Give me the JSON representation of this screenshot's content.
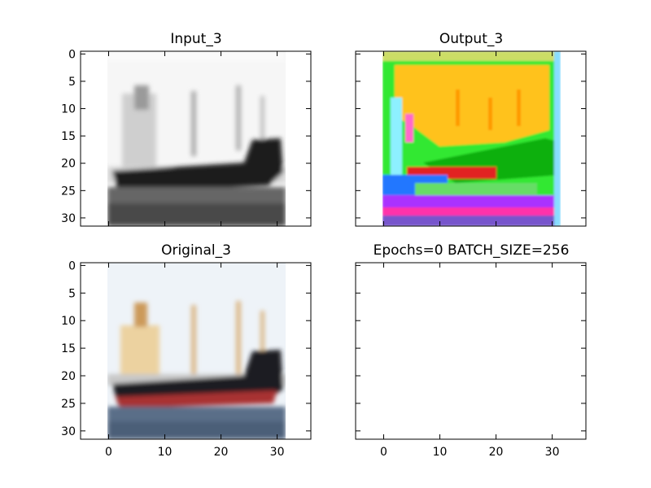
{
  "chart_data": [
    {
      "type": "image",
      "panel": "top-left",
      "title": "Input_3",
      "content": "grayscale blurred cargo ship",
      "image_extent": {
        "x": [
          -0.5,
          31.5
        ],
        "y": [
          -0.5,
          31.5
        ]
      },
      "xlim": [
        -5,
        36
      ],
      "ylim": [
        31.5,
        -0.5
      ],
      "yticks": [
        0,
        5,
        10,
        15,
        20,
        25,
        30
      ],
      "xticks": [],
      "grid": false
    },
    {
      "type": "image",
      "panel": "top-right",
      "title": "Output_3",
      "content": "false-color reconstruction of cargo ship",
      "image_extent": {
        "x": [
          -0.5,
          31.5
        ],
        "y": [
          -0.5,
          31.5
        ]
      },
      "xlim": [
        -5,
        36
      ],
      "ylim": [
        31.5,
        -0.5
      ],
      "yticks": [],
      "xticks": [],
      "grid": false
    },
    {
      "type": "image",
      "panel": "bottom-left",
      "title": "Original_3",
      "content": "color cargo ship",
      "image_extent": {
        "x": [
          -0.5,
          31.5
        ],
        "y": [
          -0.5,
          31.5
        ]
      },
      "xlim": [
        -5,
        36
      ],
      "ylim": [
        31.5,
        -0.5
      ],
      "yticks": [
        0,
        5,
        10,
        15,
        20,
        25,
        30
      ],
      "xticks": [
        0,
        10,
        20,
        30
      ],
      "grid": false
    },
    {
      "type": "empty",
      "panel": "bottom-right",
      "title": "Epochs=0 BATCH_SIZE=256",
      "xlim": [
        -5,
        36
      ],
      "ylim": [
        31.5,
        -0.5
      ],
      "yticks": [],
      "xticks": [
        0,
        10,
        20,
        30
      ],
      "grid": false
    }
  ]
}
